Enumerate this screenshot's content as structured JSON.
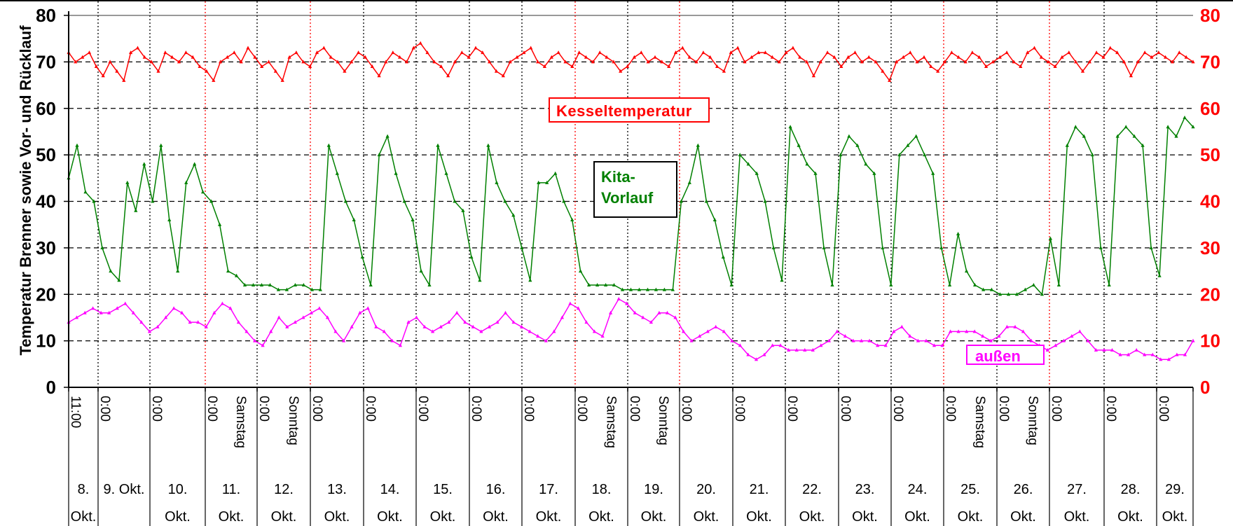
{
  "chart_data": {
    "type": "line",
    "ylabel": "Temperatur Brenner sowie Vor- und Rücklauf",
    "ylim": [
      0,
      80
    ],
    "y_ticks": [
      0,
      10,
      20,
      30,
      40,
      50,
      60,
      70,
      80
    ],
    "grid": "horizontal dashed",
    "right_axis": {
      "ylim": [
        0,
        80
      ],
      "ticks": [
        0,
        10,
        20,
        30,
        40,
        50,
        60,
        70,
        80
      ],
      "color": "#ff0000"
    },
    "x_start": "11:00",
    "midnight_label": "0:00",
    "weekday_labels": [
      {
        "day": 11,
        "text": "Samstag"
      },
      {
        "day": 12,
        "text": "Sonntag"
      },
      {
        "day": 18,
        "text": "Samstag"
      },
      {
        "day": 19,
        "text": "Sonntag"
      },
      {
        "day": 25,
        "text": "Samstag"
      },
      {
        "day": 26,
        "text": "Sonntag"
      }
    ],
    "days": [
      {
        "top": "8.",
        "bottom": "Okt."
      },
      {
        "top": "9. Okt.",
        "bottom": ""
      },
      {
        "top": "10.",
        "bottom": "Okt."
      },
      {
        "top": "11.",
        "bottom": "Okt."
      },
      {
        "top": "12.",
        "bottom": "Okt."
      },
      {
        "top": "13.",
        "bottom": "Okt."
      },
      {
        "top": "14.",
        "bottom": "Okt."
      },
      {
        "top": "15.",
        "bottom": "Okt."
      },
      {
        "top": "16.",
        "bottom": "Okt."
      },
      {
        "top": "17.",
        "bottom": "Okt."
      },
      {
        "top": "18.",
        "bottom": "Okt."
      },
      {
        "top": "19.",
        "bottom": "Okt."
      },
      {
        "top": "20.",
        "bottom": "Okt."
      },
      {
        "top": "21.",
        "bottom": "Okt."
      },
      {
        "top": "22.",
        "bottom": "Okt."
      },
      {
        "top": "23.",
        "bottom": "Okt."
      },
      {
        "top": "24.",
        "bottom": "Okt."
      },
      {
        "top": "25.",
        "bottom": "Okt."
      },
      {
        "top": "26.",
        "bottom": "Okt."
      },
      {
        "top": "27.",
        "bottom": "Okt."
      },
      {
        "top": "28.",
        "bottom": "Okt."
      },
      {
        "top": "29.",
        "bottom": "Okt."
      }
    ],
    "series": [
      {
        "name": "Kesseltemperatur",
        "color": "#ff0000",
        "values": [
          72,
          70,
          71,
          72,
          69,
          67,
          70,
          68,
          66,
          72,
          73,
          71,
          70,
          68,
          72,
          71,
          70,
          72,
          71,
          69,
          68,
          66,
          70,
          71,
          72,
          70,
          73,
          71,
          69,
          70,
          68,
          66,
          71,
          72,
          70,
          69,
          72,
          73,
          71,
          70,
          68,
          70,
          72,
          71,
          69,
          67,
          70,
          72,
          71,
          70,
          73,
          74,
          72,
          70,
          69,
          67,
          70,
          72,
          71,
          73,
          72,
          70,
          68,
          67,
          70,
          71,
          72,
          73,
          70,
          69,
          71,
          72,
          70,
          69,
          72,
          71,
          70,
          72,
          71,
          70,
          68,
          69,
          71,
          72,
          70,
          71,
          70,
          69,
          72,
          73,
          71,
          70,
          72,
          71,
          69,
          68,
          72,
          73,
          70,
          71,
          72,
          72,
          71,
          70,
          72,
          73,
          71,
          70,
          67,
          70,
          72,
          71,
          69,
          71,
          72,
          70,
          71,
          70,
          68,
          66,
          70,
          71,
          72,
          70,
          71,
          69,
          68,
          70,
          72,
          71,
          70,
          72,
          71,
          69,
          70,
          71,
          72,
          70,
          69,
          72,
          73,
          71,
          70,
          69,
          71,
          72,
          70,
          68,
          70,
          72,
          71,
          73,
          72,
          70,
          67,
          70,
          72,
          71,
          72,
          71,
          70,
          72,
          71,
          70
        ]
      },
      {
        "name": "Kita-Vorlauf",
        "color": "#008000",
        "values": [
          45,
          52,
          42,
          40,
          30,
          25,
          23,
          44,
          38,
          48,
          40,
          52,
          36,
          25,
          44,
          48,
          42,
          40,
          35,
          25,
          24,
          22,
          22,
          22,
          22,
          21,
          21,
          22,
          22,
          21,
          21,
          52,
          46,
          40,
          36,
          28,
          22,
          50,
          54,
          46,
          40,
          36,
          25,
          22,
          52,
          46,
          40,
          38,
          28,
          23,
          52,
          44,
          40,
          37,
          30,
          23,
          44,
          44,
          46,
          40,
          36,
          25,
          22,
          22,
          22,
          22,
          21,
          21,
          21,
          21,
          21,
          21,
          21,
          40,
          44,
          52,
          40,
          36,
          28,
          22,
          50,
          48,
          46,
          40,
          30,
          23,
          56,
          52,
          48,
          46,
          30,
          22,
          50,
          54,
          52,
          48,
          46,
          30,
          22,
          50,
          52,
          54,
          50,
          46,
          30,
          22,
          33,
          25,
          22,
          21,
          21,
          20,
          20,
          20,
          21,
          22,
          20,
          32,
          22,
          52,
          56,
          54,
          50,
          30,
          22,
          54,
          56,
          54,
          52,
          30,
          24,
          56,
          54,
          58,
          56
        ]
      },
      {
        "name": "außen",
        "color": "#ff00ff",
        "values": [
          14,
          15,
          16,
          17,
          16,
          16,
          17,
          18,
          16,
          14,
          12,
          13,
          15,
          17,
          16,
          14,
          14,
          13,
          16,
          18,
          17,
          14,
          12,
          10,
          9,
          12,
          15,
          13,
          14,
          15,
          16,
          17,
          15,
          12,
          10,
          13,
          16,
          17,
          13,
          12,
          10,
          9,
          14,
          15,
          13,
          12,
          13,
          14,
          16,
          14,
          13,
          12,
          13,
          14,
          16,
          14,
          13,
          12,
          11,
          10,
          12,
          15,
          18,
          17,
          14,
          12,
          11,
          16,
          19,
          18,
          16,
          15,
          14,
          16,
          16,
          15,
          12,
          10,
          11,
          12,
          13,
          12,
          10,
          9,
          7,
          6,
          7,
          9,
          9,
          8,
          8,
          8,
          8,
          9,
          10,
          12,
          11,
          10,
          10,
          10,
          9,
          9,
          12,
          13,
          11,
          10,
          10,
          9,
          9,
          12,
          12,
          12,
          12,
          11,
          10,
          11,
          13,
          13,
          12,
          10,
          9,
          8,
          9,
          10,
          11,
          12,
          10,
          8,
          8,
          8,
          7,
          7,
          8,
          7,
          7,
          6,
          6,
          7,
          7,
          10
        ]
      }
    ]
  }
}
